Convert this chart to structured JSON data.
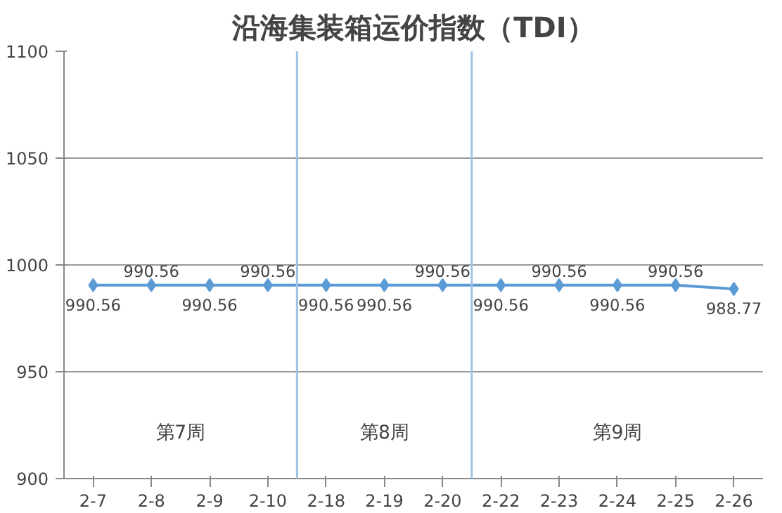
{
  "chart_data": {
    "type": "line",
    "title": "沿海集装箱运价指数（TDI）",
    "categories": [
      "2-7",
      "2-8",
      "2-9",
      "2-10",
      "2-18",
      "2-19",
      "2-20",
      "2-22",
      "2-23",
      "2-24",
      "2-25",
      "2-26"
    ],
    "series": [
      {
        "color": "#5b9bd5",
        "values": [
          990.56,
          990.56,
          990.56,
          990.56,
          990.56,
          990.56,
          990.56,
          990.56,
          990.56,
          990.56,
          990.56,
          988.77
        ]
      }
    ],
    "ylim": [
      900,
      1100
    ],
    "yticks": [
      900,
      950,
      1000,
      1050,
      1100
    ],
    "grid": "y",
    "marker": "diamond",
    "line_style": "solid",
    "data_labels": true,
    "annotations": [
      "第7周",
      "第8周",
      "第9周"
    ]
  }
}
